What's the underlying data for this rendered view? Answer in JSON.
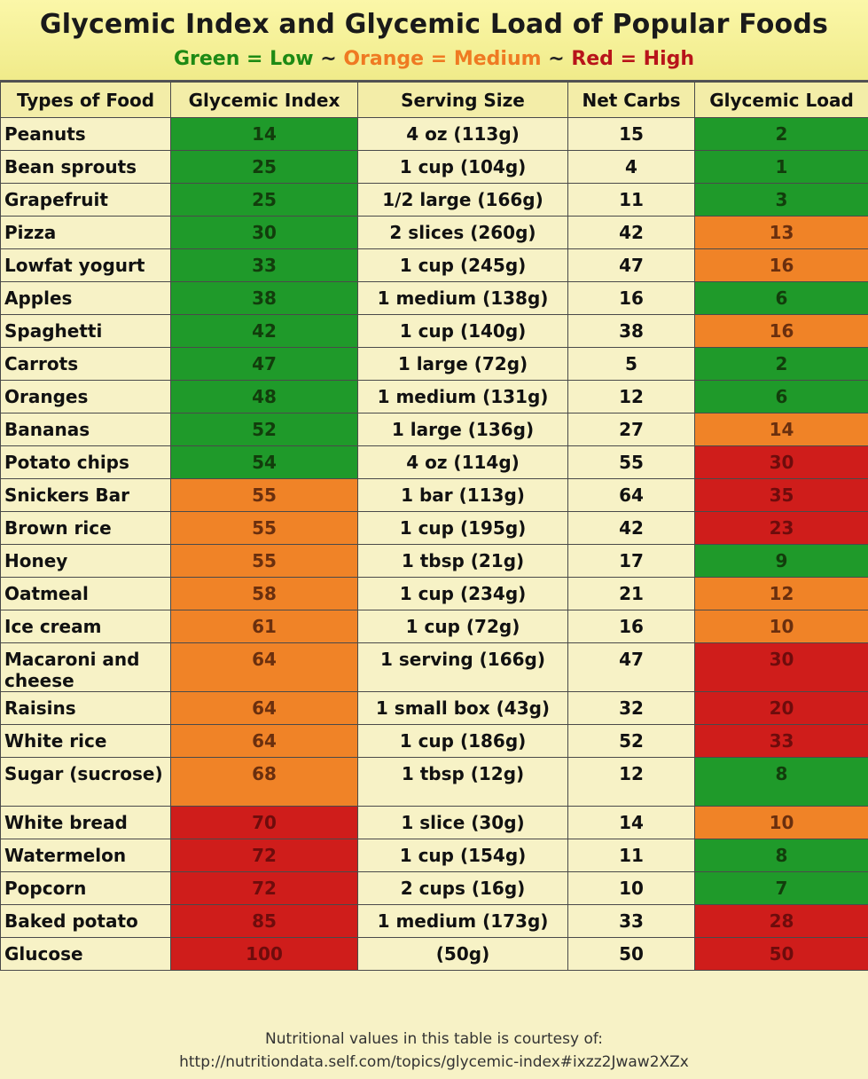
{
  "title": "Glycemic Index and Glycemic Load of Popular Foods",
  "legend": {
    "green": "Green = Low",
    "sep1": "~",
    "orange": "Orange = Medium",
    "sep2": "~",
    "red": "Red = High"
  },
  "colors": {
    "green": "#1f9a2a",
    "orange": "#f08327",
    "red": "#cf1d1b",
    "background": "#f7f2c6"
  },
  "columns": [
    "Types of Food",
    "Glycemic Index",
    "Serving Size",
    "Net Carbs",
    "Glycemic Load"
  ],
  "rows": [
    {
      "food": "Peanuts",
      "gi": "14",
      "gi_level": "green",
      "serving": "4 oz (113g)",
      "carbs": "15",
      "gl": "2",
      "gl_level": "green"
    },
    {
      "food": "Bean sprouts",
      "gi": "25",
      "gi_level": "green",
      "serving": "1 cup (104g)",
      "carbs": "4",
      "gl": "1",
      "gl_level": "green"
    },
    {
      "food": "Grapefruit",
      "gi": "25",
      "gi_level": "green",
      "serving": "1/2 large (166g)",
      "carbs": "11",
      "gl": "3",
      "gl_level": "green"
    },
    {
      "food": "Pizza",
      "gi": "30",
      "gi_level": "green",
      "serving": "2 slices (260g)",
      "carbs": "42",
      "gl": "13",
      "gl_level": "orange"
    },
    {
      "food": "Lowfat yogurt",
      "gi": "33",
      "gi_level": "green",
      "serving": "1 cup (245g)",
      "carbs": "47",
      "gl": "16",
      "gl_level": "orange"
    },
    {
      "food": "Apples",
      "gi": "38",
      "gi_level": "green",
      "serving": "1 medium (138g)",
      "carbs": "16",
      "gl": "6",
      "gl_level": "green"
    },
    {
      "food": "Spaghetti",
      "gi": "42",
      "gi_level": "green",
      "serving": "1 cup (140g)",
      "carbs": "38",
      "gl": "16",
      "gl_level": "orange"
    },
    {
      "food": "Carrots",
      "gi": "47",
      "gi_level": "green",
      "serving": "1 large (72g)",
      "carbs": "5",
      "gl": "2",
      "gl_level": "green"
    },
    {
      "food": "Oranges",
      "gi": "48",
      "gi_level": "green",
      "serving": "1 medium (131g)",
      "carbs": "12",
      "gl": "6",
      "gl_level": "green"
    },
    {
      "food": "Bananas",
      "gi": "52",
      "gi_level": "green",
      "serving": "1 large (136g)",
      "carbs": "27",
      "gl": "14",
      "gl_level": "orange"
    },
    {
      "food": "Potato chips",
      "gi": "54",
      "gi_level": "green",
      "serving": "4 oz (114g)",
      "carbs": "55",
      "gl": "30",
      "gl_level": "red"
    },
    {
      "food": "Snickers Bar",
      "gi": "55",
      "gi_level": "orange",
      "serving": "1 bar (113g)",
      "carbs": "64",
      "gl": "35",
      "gl_level": "red"
    },
    {
      "food": "Brown rice",
      "gi": "55",
      "gi_level": "orange",
      "serving": "1 cup (195g)",
      "carbs": "42",
      "gl": "23",
      "gl_level": "red"
    },
    {
      "food": "Honey",
      "gi": "55",
      "gi_level": "orange",
      "serving": "1 tbsp (21g)",
      "carbs": "17",
      "gl": "9",
      "gl_level": "green"
    },
    {
      "food": "Oatmeal",
      "gi": "58",
      "gi_level": "orange",
      "serving": "1 cup (234g)",
      "carbs": "21",
      "gl": "12",
      "gl_level": "orange"
    },
    {
      "food": "Ice cream",
      "gi": "61",
      "gi_level": "orange",
      "serving": "1 cup (72g)",
      "carbs": "16",
      "gl": "10",
      "gl_level": "orange"
    },
    {
      "food": "Macaroni and cheese",
      "gi": "64",
      "gi_level": "orange",
      "serving": "1 serving (166g)",
      "carbs": "47",
      "gl": "30",
      "gl_level": "red",
      "tall": true
    },
    {
      "food": "Raisins",
      "gi": "64",
      "gi_level": "orange",
      "serving": "1 small box (43g)",
      "carbs": "32",
      "gl": "20",
      "gl_level": "red"
    },
    {
      "food": "White rice",
      "gi": "64",
      "gi_level": "orange",
      "serving": "1 cup (186g)",
      "carbs": "52",
      "gl": "33",
      "gl_level": "red"
    },
    {
      "food": "Sugar (sucrose)",
      "gi": "68",
      "gi_level": "orange",
      "serving": "1 tbsp (12g)",
      "carbs": "12",
      "gl": "8",
      "gl_level": "green",
      "tall": true
    },
    {
      "food": "White bread",
      "gi": "70",
      "gi_level": "red",
      "serving": "1 slice (30g)",
      "carbs": "14",
      "gl": "10",
      "gl_level": "orange"
    },
    {
      "food": "Watermelon",
      "gi": "72",
      "gi_level": "red",
      "serving": "1 cup (154g)",
      "carbs": "11",
      "gl": "8",
      "gl_level": "green"
    },
    {
      "food": "Popcorn",
      "gi": "72",
      "gi_level": "red",
      "serving": "2 cups (16g)",
      "carbs": "10",
      "gl": "7",
      "gl_level": "green"
    },
    {
      "food": "Baked potato",
      "gi": "85",
      "gi_level": "red",
      "serving": "1 medium (173g)",
      "carbs": "33",
      "gl": "28",
      "gl_level": "red"
    },
    {
      "food": "Glucose",
      "gi": "100",
      "gi_level": "red",
      "serving": "(50g)",
      "carbs": "50",
      "gl": "50",
      "gl_level": "red"
    }
  ],
  "footer": {
    "line1": "Nutritional values in this table is courtesy of:",
    "line2": "http://nutritiondata.self.com/topics/glycemic-index#ixzz2Jwaw2XZx"
  }
}
